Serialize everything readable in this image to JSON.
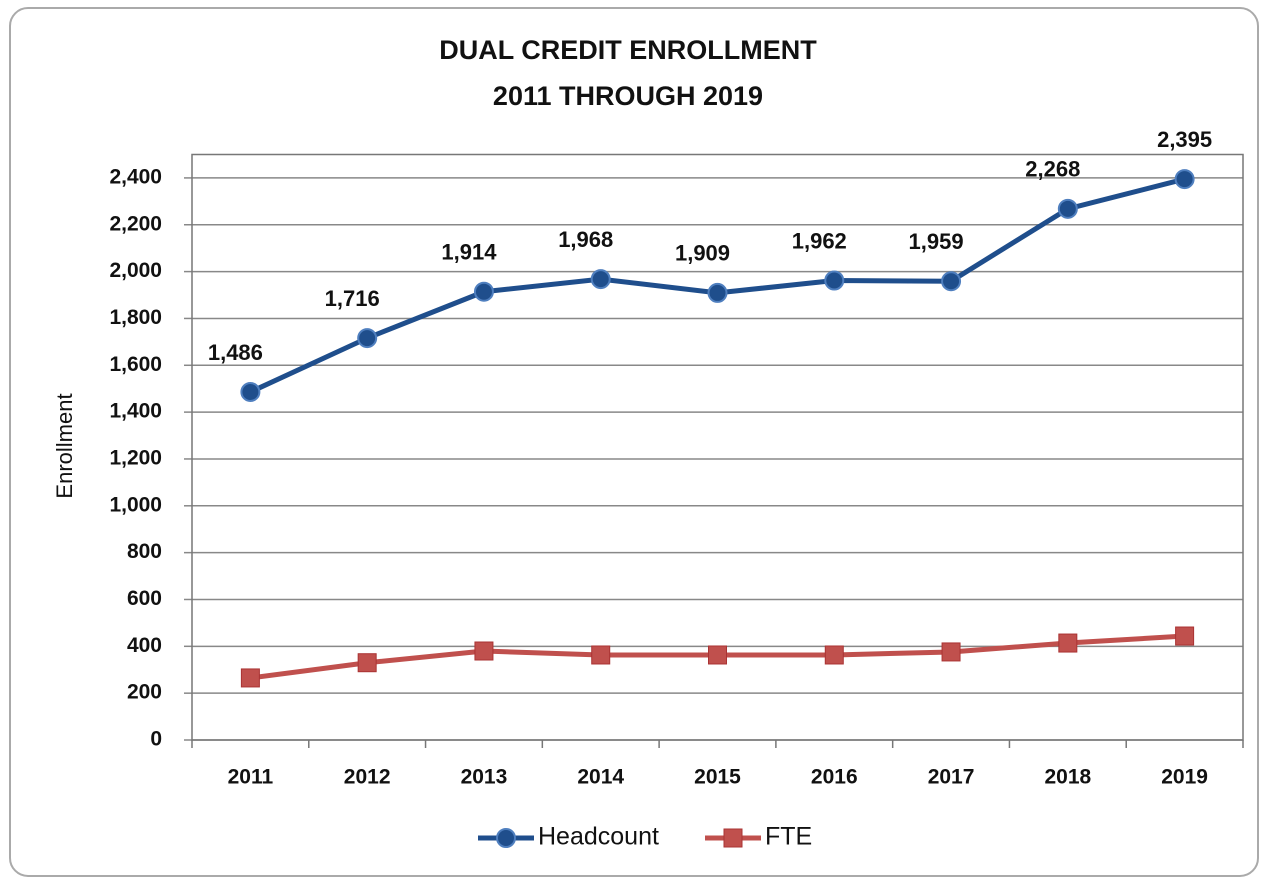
{
  "chart_data": {
    "type": "line",
    "title": "DUAL CREDIT ENROLLMENT",
    "subtitle": "2011 THROUGH 2019",
    "y_label": "Enrollment",
    "categories": [
      "2011",
      "2012",
      "2013",
      "2014",
      "2015",
      "2016",
      "2017",
      "2018",
      "2019"
    ],
    "series": [
      {
        "name": "Headcount",
        "color": "#1f4e8c",
        "marker": "circle",
        "values": [
          1486,
          1716,
          1914,
          1968,
          1909,
          1962,
          1959,
          2268,
          2395
        ],
        "value_labels": [
          "1,486",
          "1,716",
          "1,914",
          "1,968",
          "1,909",
          "1,962",
          "1,959",
          "2,268",
          "2,395"
        ]
      },
      {
        "name": "FTE",
        "color": "#c0504d",
        "marker": "square",
        "values": [
          265,
          330,
          380,
          363,
          363,
          363,
          376,
          414,
          444
        ]
      }
    ],
    "ylim": [
      0,
      2500
    ],
    "yticks": [
      0,
      200,
      400,
      600,
      800,
      {
        "value": 1000,
        "label": "1,000"
      },
      {
        "value": 1200,
        "label": "1,200"
      },
      {
        "value": 1400,
        "label": "1,400"
      },
      {
        "value": 1600,
        "label": "1,600"
      },
      {
        "value": 1800,
        "label": "1,800"
      },
      {
        "value": 2000,
        "label": "2,000"
      },
      {
        "value": 2200,
        "label": "2,200"
      },
      {
        "value": 2400,
        "label": "2,400"
      }
    ],
    "grid": true,
    "legend": "bottom"
  }
}
